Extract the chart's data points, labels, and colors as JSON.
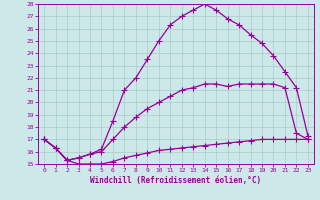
{
  "xlabel": "Windchill (Refroidissement éolien,°C)",
  "background_color": "#cce8e8",
  "grid_color": "#aacccc",
  "line_color": "#990099",
  "xlim": [
    -0.5,
    23.5
  ],
  "ylim": [
    15,
    28
  ],
  "xticks": [
    0,
    1,
    2,
    3,
    4,
    5,
    6,
    7,
    8,
    9,
    10,
    11,
    12,
    13,
    14,
    15,
    16,
    17,
    18,
    19,
    20,
    21,
    22,
    23
  ],
  "yticks": [
    15,
    16,
    17,
    18,
    19,
    20,
    21,
    22,
    23,
    24,
    25,
    26,
    27,
    28
  ],
  "line1_x": [
    0,
    1,
    2,
    3,
    4,
    5,
    6,
    7,
    8,
    9,
    10,
    11,
    12,
    13,
    14,
    15,
    16,
    17,
    18,
    19,
    20,
    21,
    22,
    23
  ],
  "line1_y": [
    17.0,
    16.3,
    15.3,
    15.0,
    15.0,
    15.0,
    15.2,
    15.5,
    15.7,
    15.9,
    16.1,
    16.2,
    16.3,
    16.4,
    16.5,
    16.6,
    16.7,
    16.8,
    16.9,
    17.0,
    17.0,
    17.0,
    17.0,
    17.0
  ],
  "line2_x": [
    0,
    1,
    2,
    3,
    4,
    5,
    6,
    7,
    8,
    9,
    10,
    11,
    12,
    13,
    14,
    15,
    16,
    17,
    18,
    19,
    20,
    21,
    22,
    23
  ],
  "line2_y": [
    17.0,
    16.3,
    15.3,
    15.5,
    15.8,
    16.0,
    17.0,
    18.0,
    18.8,
    19.5,
    20.0,
    20.5,
    21.0,
    21.2,
    21.5,
    21.5,
    21.3,
    21.5,
    21.5,
    21.5,
    21.5,
    21.2,
    17.5,
    17.0
  ],
  "line3_x": [
    0,
    1,
    2,
    3,
    4,
    5,
    6,
    7,
    8,
    9,
    10,
    11,
    12,
    13,
    14,
    15,
    16,
    17,
    18,
    19,
    20,
    21,
    22,
    23
  ],
  "line3_y": [
    17.0,
    16.3,
    15.3,
    15.5,
    15.8,
    16.2,
    18.5,
    21.0,
    22.0,
    23.5,
    25.0,
    26.3,
    27.0,
    27.5,
    28.0,
    27.5,
    26.8,
    26.3,
    25.5,
    24.8,
    23.8,
    22.5,
    21.2,
    17.3
  ],
  "marker": "+",
  "markersize": 4,
  "linewidth": 0.9
}
